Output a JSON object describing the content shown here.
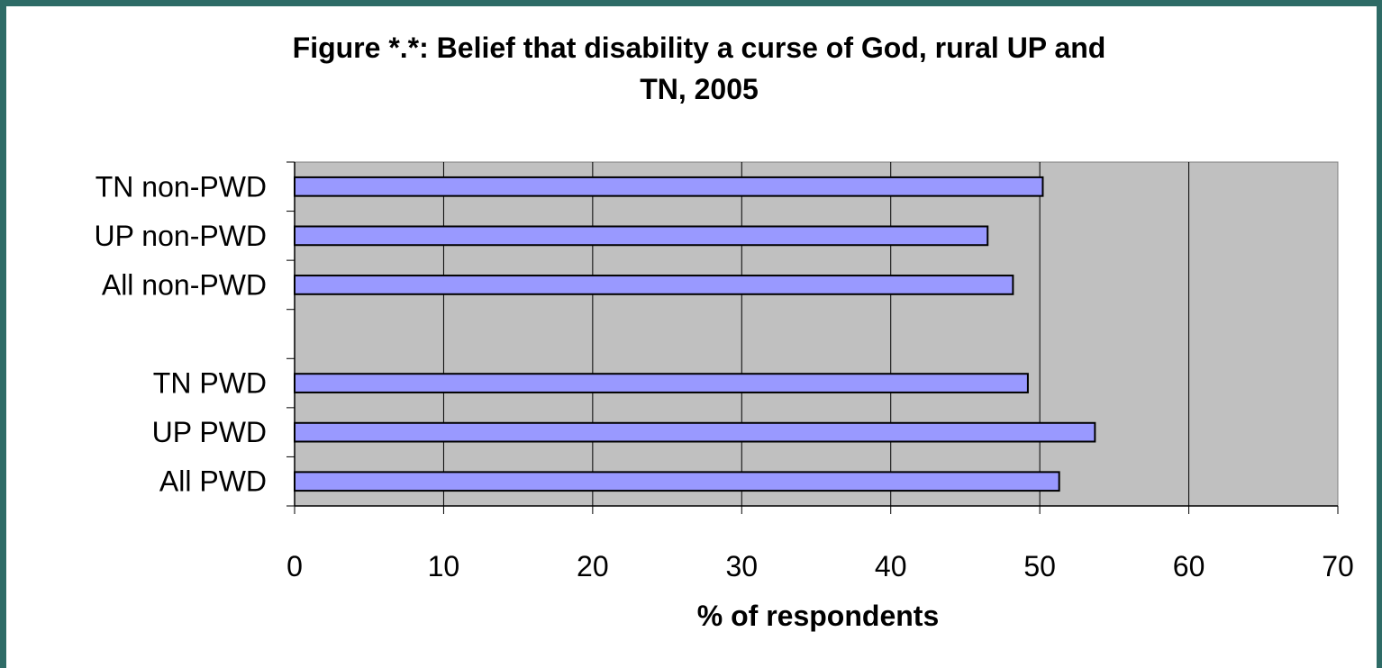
{
  "chart_data": {
    "type": "bar",
    "orientation": "horizontal",
    "title_lines": [
      "Figure *.*: Belief that disability a curse of God, rural UP and",
      "TN, 2005"
    ],
    "xlabel": "% of respondents",
    "ylabel": "",
    "xlim": [
      0,
      70
    ],
    "x_ticks": [
      "0",
      "10",
      "20",
      "30",
      "40",
      "50",
      "60",
      "70"
    ],
    "categories": [
      "TN non-PWD",
      "UP non-PWD",
      "All non-PWD",
      "",
      "TN PWD",
      "UP PWD",
      "All PWD"
    ],
    "values": [
      50.2,
      46.5,
      48.2,
      null,
      49.2,
      53.7,
      51.3
    ],
    "grid": true,
    "legend": "none",
    "colors": {
      "bar": "#9999ff",
      "plot_background": "#c0c0c0",
      "frame": "#2e6b66"
    }
  }
}
